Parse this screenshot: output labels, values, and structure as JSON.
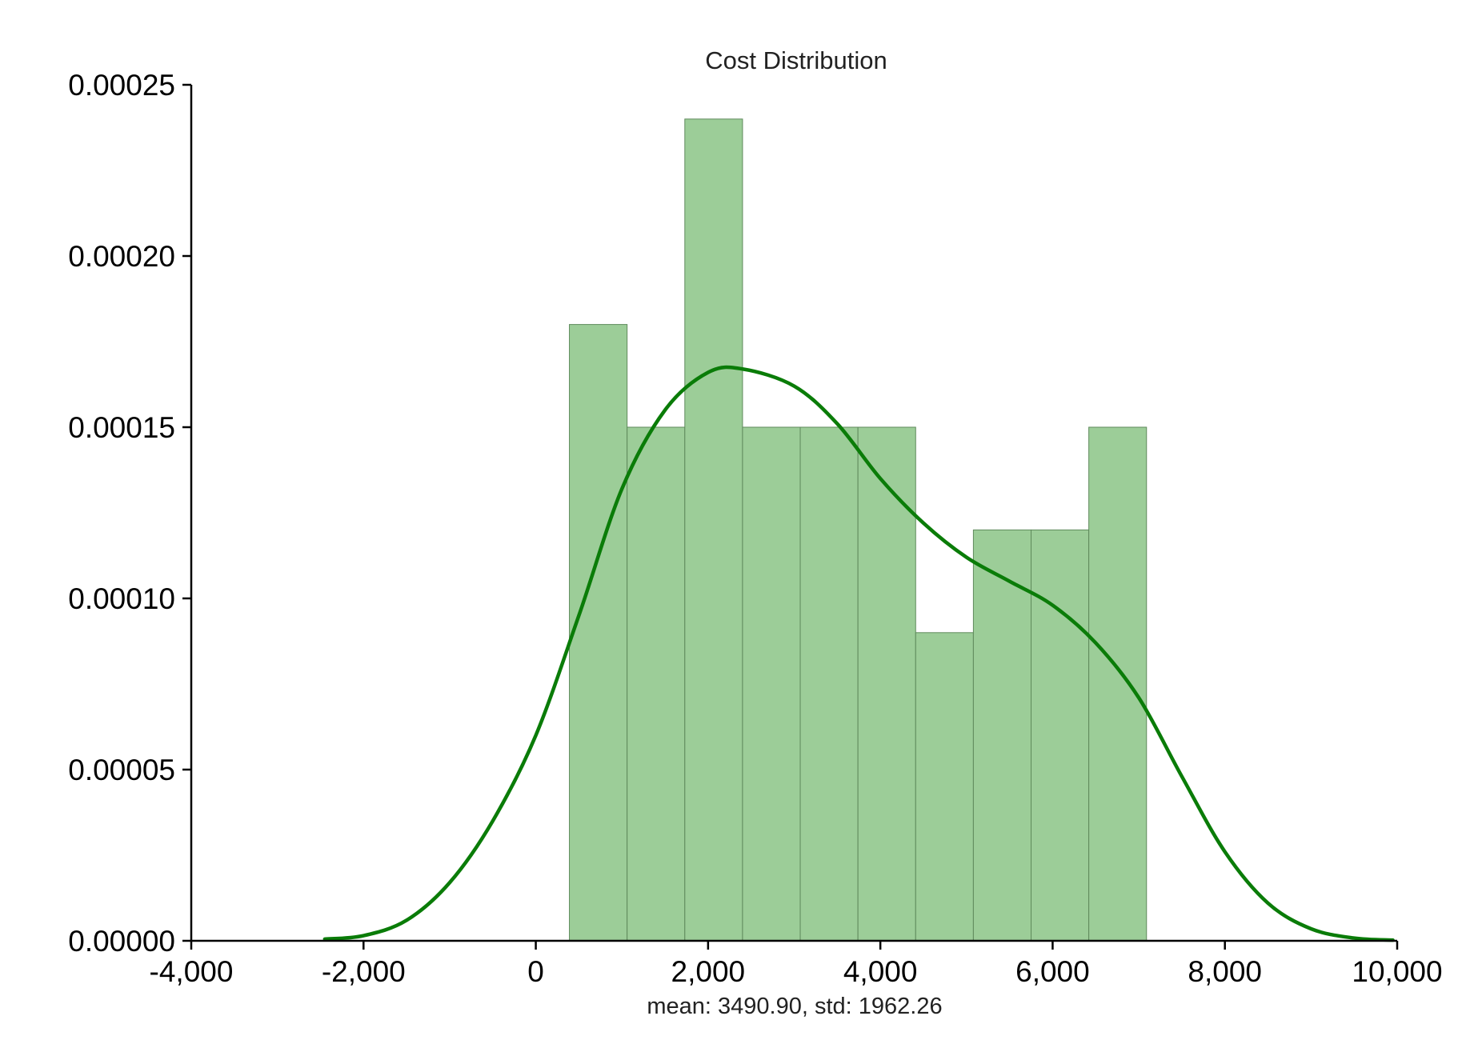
{
  "chart_data": {
    "type": "bar",
    "title": "Cost Distribution",
    "xlabel": "mean: 3490.90, std: 1962.26",
    "ylabel": "",
    "xlim": [
      -4000,
      10000
    ],
    "ylim": [
      0,
      0.00025
    ],
    "x_ticks": [
      -4000,
      -2000,
      0,
      2000,
      4000,
      6000,
      8000,
      10000
    ],
    "x_tick_labels": [
      "-4,000",
      "-2,000",
      "0",
      "2,000",
      "4,000",
      "6,000",
      "8,000",
      "10,000"
    ],
    "y_ticks": [
      0,
      5e-05,
      0.0001,
      0.00015,
      0.0002,
      0.00025
    ],
    "y_tick_labels": [
      "0.00000",
      "0.00005",
      "0.00010",
      "0.00015",
      "0.00020",
      "0.00025"
    ],
    "grid": false,
    "legend": "none",
    "histogram": {
      "bin_edges": [
        390,
        1060,
        1730,
        2400,
        3070,
        3740,
        4410,
        5080,
        5750,
        6420,
        7090
      ],
      "density": [
        0.00018,
        0.00015,
        0.00024,
        0.00015,
        0.00015,
        0.00015,
        9e-05,
        0.00012,
        0.00012,
        0.00015
      ],
      "color": "#9ccd98",
      "edge_color": "#5f8a5c"
    },
    "kde": {
      "color": "#0a7c08",
      "x": [
        -2450,
        -2000,
        -1500,
        -1000,
        -500,
        0,
        500,
        1000,
        1500,
        2000,
        2400,
        3000,
        3500,
        4000,
        4500,
        5000,
        5500,
        6000,
        6500,
        7000,
        7500,
        8000,
        8500,
        9000,
        9500,
        9950
      ],
      "y": [
        5e-07,
        1.5e-06,
        6e-06,
        1.7e-05,
        3.5e-05,
        6e-05,
        9.5e-05,
        0.000132,
        0.000155,
        0.000166,
        0.000167,
        0.000162,
        0.000151,
        0.000135,
        0.000122,
        0.000112,
        0.000105,
        9.8e-05,
        8.7e-05,
        7.1e-05,
        4.8e-05,
        2.6e-05,
        1.1e-05,
        3.5e-06,
        8e-07,
        2e-07
      ]
    }
  }
}
